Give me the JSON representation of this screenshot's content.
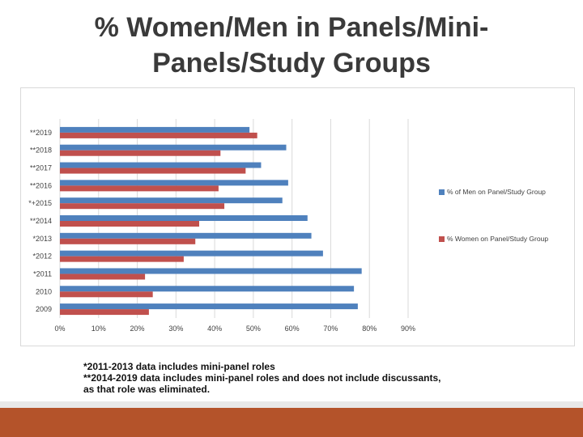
{
  "slide": {
    "title_prefix": "% ",
    "title_line1_rest": "Women/Men in Panels/Mini-",
    "title_line2": "Panels/Study Groups",
    "footnote_1": "*2011-2013 data includes mini-panel roles",
    "footnote_2": "**2014-2019 data includes mini-panel roles and does not include discussants,",
    "footnote_3": "as that role was eliminated."
  },
  "colors": {
    "men": "#4f81bd",
    "women": "#c0504d",
    "grid": "#d9d9d9",
    "axis_text": "#404040",
    "accent_bar": "#b4532a"
  },
  "chart_data": {
    "type": "bar",
    "orientation": "horizontal",
    "categories": [
      "**2019",
      "**2018",
      "**2017",
      "**2016",
      "*+2015",
      "**2014",
      "*2013",
      "*2012",
      "*2011",
      "2010",
      "2009"
    ],
    "series": [
      {
        "name": "% of Men on Panel/Study Group",
        "values": [
          49,
          58.5,
          52,
          59,
          57.5,
          64,
          65,
          68,
          78,
          76,
          77
        ]
      },
      {
        "name": "% Women on Panel/Study Group",
        "values": [
          51,
          41.5,
          48,
          41,
          42.5,
          36,
          35,
          32,
          22,
          24,
          23
        ]
      }
    ],
    "xlim": [
      0,
      90
    ],
    "xticks": [
      "0%",
      "10%",
      "20%",
      "30%",
      "40%",
      "50%",
      "60%",
      "70%",
      "80%",
      "90%"
    ],
    "grid": true,
    "legend_position": "right"
  }
}
